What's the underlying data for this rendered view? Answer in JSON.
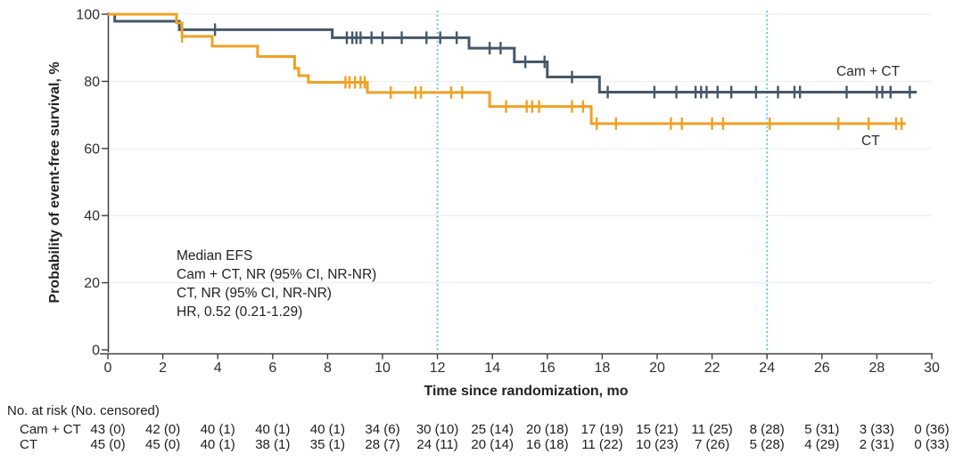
{
  "chart_data": {
    "type": "line",
    "subtype": "kaplan-meier-step",
    "x_title": "Time since randomization, mo",
    "y_title": "Probability of event-free survival, %",
    "xlim": [
      0,
      30
    ],
    "ylim": [
      0,
      100
    ],
    "x_ticks": [
      0,
      2,
      4,
      6,
      8,
      10,
      12,
      14,
      16,
      18,
      20,
      22,
      24,
      26,
      28,
      30
    ],
    "y_ticks": [
      0,
      20,
      40,
      60,
      80,
      100
    ],
    "grid": "horizontal",
    "reference_lines_x": [
      12,
      24
    ],
    "reference_line_color": "#55c3e9",
    "series": [
      {
        "name": "Cam + CT",
        "color": "#45586a",
        "steps": [
          [
            0,
            100
          ],
          [
            0.25,
            97.9
          ],
          [
            2.6,
            95.4
          ],
          [
            8.17,
            93.0
          ],
          [
            13.15,
            89.9
          ],
          [
            14.8,
            85.8
          ],
          [
            16.0,
            81.3
          ],
          [
            17.9,
            76.8
          ]
        ],
        "end": 29.45,
        "censors": [
          [
            3.9,
            95.4
          ],
          [
            8.7,
            93.0
          ],
          [
            8.9,
            93.0
          ],
          [
            9.05,
            93.0
          ],
          [
            9.2,
            93.0
          ],
          [
            9.6,
            93.0
          ],
          [
            10.0,
            93.0
          ],
          [
            10.7,
            93.0
          ],
          [
            11.6,
            93.0
          ],
          [
            12.1,
            93.0
          ],
          [
            12.7,
            93.0
          ],
          [
            13.9,
            89.9
          ],
          [
            14.3,
            89.9
          ],
          [
            15.2,
            85.8
          ],
          [
            15.9,
            85.8
          ],
          [
            16.9,
            81.3
          ],
          [
            18.2,
            76.8
          ],
          [
            19.9,
            76.8
          ],
          [
            20.7,
            76.8
          ],
          [
            21.4,
            76.8
          ],
          [
            21.6,
            76.8
          ],
          [
            21.8,
            76.8
          ],
          [
            22.2,
            76.8
          ],
          [
            22.7,
            76.8
          ],
          [
            23.6,
            76.8
          ],
          [
            24.4,
            76.8
          ],
          [
            25.0,
            76.8
          ],
          [
            25.2,
            76.8
          ],
          [
            26.9,
            76.8
          ],
          [
            28.0,
            76.8
          ],
          [
            28.2,
            76.8
          ],
          [
            28.5,
            76.8
          ],
          [
            29.2,
            76.8
          ]
        ]
      },
      {
        "name": "CT",
        "color": "#f0a124",
        "steps": [
          [
            0,
            100
          ],
          [
            2.5,
            97.4
          ],
          [
            2.7,
            93.4
          ],
          [
            3.8,
            90.5
          ],
          [
            5.45,
            87.4
          ],
          [
            6.8,
            83.9
          ],
          [
            6.95,
            81.7
          ],
          [
            7.3,
            79.7
          ],
          [
            9.45,
            76.7
          ],
          [
            13.9,
            72.5
          ],
          [
            17.6,
            67.4
          ]
        ],
        "end": 29.05,
        "censors": [
          [
            2.7,
            93.4
          ],
          [
            8.65,
            79.7
          ],
          [
            8.8,
            79.7
          ],
          [
            9.0,
            79.7
          ],
          [
            9.2,
            79.7
          ],
          [
            9.35,
            79.7
          ],
          [
            10.3,
            76.7
          ],
          [
            11.2,
            76.7
          ],
          [
            11.4,
            76.7
          ],
          [
            12.5,
            76.7
          ],
          [
            12.9,
            76.7
          ],
          [
            14.5,
            72.5
          ],
          [
            15.25,
            72.5
          ],
          [
            15.45,
            72.5
          ],
          [
            15.7,
            72.5
          ],
          [
            16.9,
            72.5
          ],
          [
            17.3,
            72.5
          ],
          [
            17.8,
            67.4
          ],
          [
            18.5,
            67.4
          ],
          [
            20.5,
            67.4
          ],
          [
            20.9,
            67.4
          ],
          [
            22.0,
            67.4
          ],
          [
            22.4,
            67.4
          ],
          [
            24.1,
            67.4
          ],
          [
            26.6,
            67.4
          ],
          [
            27.7,
            67.4
          ],
          [
            28.7,
            67.4
          ],
          [
            28.9,
            67.4
          ]
        ]
      }
    ]
  },
  "annotation": {
    "lines": [
      "Median EFS",
      "Cam + CT, NR (95% CI, NR-NR)",
      "CT, NR (95% CI, NR-NR)",
      "HR, 0.52 (0.21-1.29)"
    ]
  },
  "risk_table": {
    "header": "No. at risk (No. censored)",
    "time_points": [
      0,
      2,
      4,
      6,
      8,
      10,
      12,
      14,
      16,
      18,
      20,
      22,
      24,
      26,
      28,
      30
    ],
    "rows": [
      {
        "label": "Cam + CT",
        "values": [
          "43 (0)",
          "42 (0)",
          "40 (1)",
          "40 (1)",
          "40 (1)",
          "34 (6)",
          "30 (10)",
          "25 (14)",
          "20 (18)",
          "17 (19)",
          "15 (21)",
          "11 (25)",
          "8 (28)",
          "5 (31)",
          "3 (33)",
          "0 (36)"
        ]
      },
      {
        "label": "CT",
        "values": [
          "45 (0)",
          "45 (0)",
          "40 (1)",
          "38 (1)",
          "35 (1)",
          "28 (7)",
          "24 (11)",
          "20 (14)",
          "16 (18)",
          "11 (22)",
          "10 (23)",
          "7 (26)",
          "5 (28)",
          "4 (29)",
          "2 (31)",
          "0 (33)"
        ]
      }
    ]
  }
}
